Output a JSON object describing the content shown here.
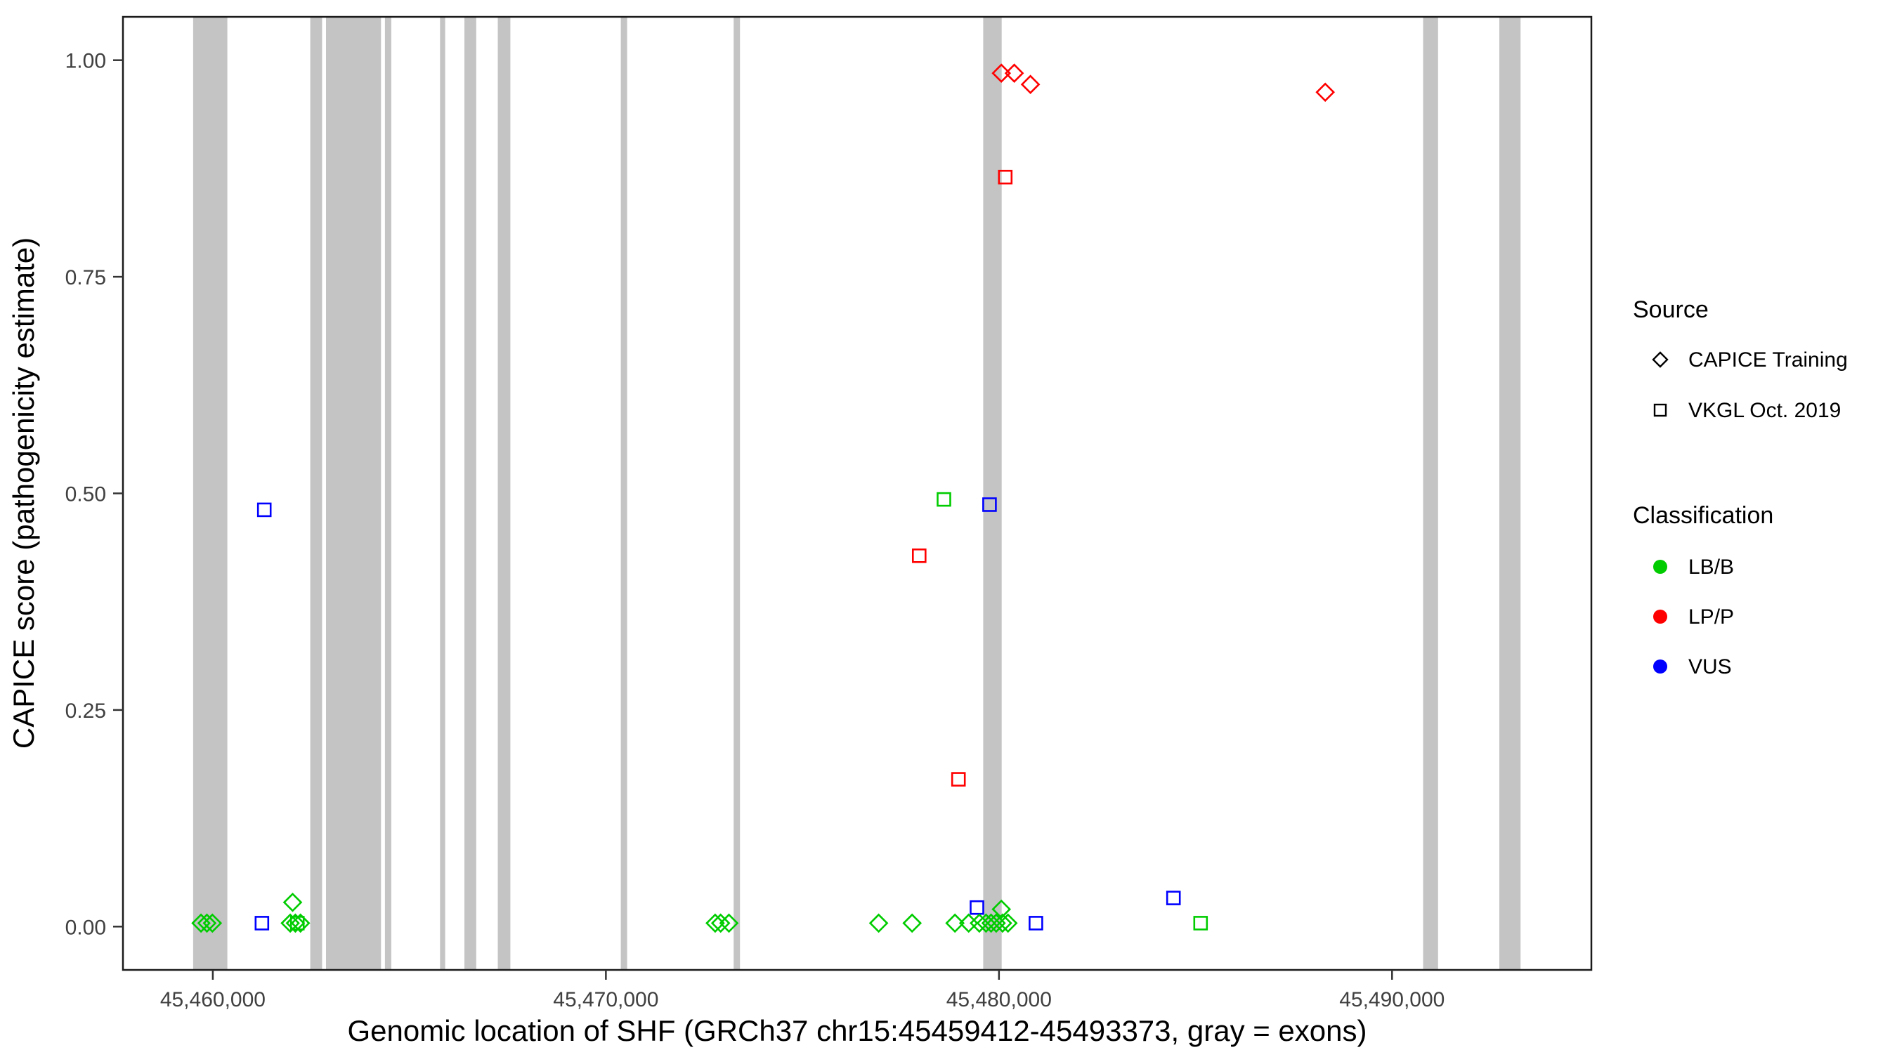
{
  "chart_data": {
    "type": "scatter",
    "title": "",
    "xlabel": "Genomic location of SHF (GRCh37 chr15:45459412-45493373, gray = exons)",
    "ylabel": "CAPICE score (pathogenicity estimate)",
    "x_domain": [
      45457714,
      45495071
    ],
    "y_domain": [
      -0.05,
      1.05
    ],
    "x_ticks": [
      {
        "value": 45460000,
        "label": "45,460,000"
      },
      {
        "value": 45470000,
        "label": "45,470,000"
      },
      {
        "value": 45480000,
        "label": "45,480,000"
      },
      {
        "value": 45490000,
        "label": "45,490,000"
      }
    ],
    "y_ticks": [
      {
        "value": 0.0,
        "label": "0.00"
      },
      {
        "value": 0.25,
        "label": "0.25"
      },
      {
        "value": 0.5,
        "label": "0.50"
      },
      {
        "value": 0.75,
        "label": "0.75"
      },
      {
        "value": 1.0,
        "label": "1.00"
      }
    ],
    "exon_color": "#C4C4C4",
    "exons": [
      [
        45459500,
        45460370
      ],
      [
        45462480,
        45462780
      ],
      [
        45462880,
        45464280
      ],
      [
        45464380,
        45464540
      ],
      [
        45465780,
        45465910
      ],
      [
        45466400,
        45466700
      ],
      [
        45467250,
        45467570
      ],
      [
        45470380,
        45470540
      ],
      [
        45473250,
        45473410
      ],
      [
        45479600,
        45480070
      ],
      [
        45490790,
        45491170
      ],
      [
        45492730,
        45493270
      ]
    ],
    "colors": {
      "LB/B": "#00CC00",
      "LP/P": "#FF0000",
      "VUS": "#0000FF"
    },
    "shapes": {
      "CAPICE Training": "diamond",
      "VKGL Oct. 2019": "square"
    },
    "points": [
      {
        "x": 45480060,
        "y": 0.985,
        "source": "CAPICE Training",
        "classification": "LP/P"
      },
      {
        "x": 45480390,
        "y": 0.985,
        "source": "CAPICE Training",
        "classification": "LP/P"
      },
      {
        "x": 45480800,
        "y": 0.972,
        "source": "CAPICE Training",
        "classification": "LP/P"
      },
      {
        "x": 45488300,
        "y": 0.963,
        "source": "CAPICE Training",
        "classification": "LP/P"
      },
      {
        "x": 45480160,
        "y": 0.865,
        "source": "VKGL Oct. 2019",
        "classification": "LP/P"
      },
      {
        "x": 45477970,
        "y": 0.428,
        "source": "VKGL Oct. 2019",
        "classification": "LP/P"
      },
      {
        "x": 45478970,
        "y": 0.17,
        "source": "VKGL Oct. 2019",
        "classification": "LP/P"
      },
      {
        "x": 45478600,
        "y": 0.493,
        "source": "VKGL Oct. 2019",
        "classification": "LB/B"
      },
      {
        "x": 45479760,
        "y": 0.487,
        "source": "VKGL Oct. 2019",
        "classification": "VUS"
      },
      {
        "x": 45461310,
        "y": 0.481,
        "source": "VKGL Oct. 2019",
        "classification": "VUS"
      },
      {
        "x": 45461250,
        "y": 0.004,
        "source": "VKGL Oct. 2019",
        "classification": "VUS"
      },
      {
        "x": 45479440,
        "y": 0.022,
        "source": "VKGL Oct. 2019",
        "classification": "VUS"
      },
      {
        "x": 45480940,
        "y": 0.004,
        "source": "VKGL Oct. 2019",
        "classification": "VUS"
      },
      {
        "x": 45484440,
        "y": 0.033,
        "source": "VKGL Oct. 2019",
        "classification": "VUS"
      },
      {
        "x": 45485130,
        "y": 0.004,
        "source": "VKGL Oct. 2019",
        "classification": "LB/B"
      },
      {
        "x": 45462150,
        "y": 0.004,
        "source": "VKGL Oct. 2019",
        "classification": "LB/B"
      },
      {
        "x": 45459700,
        "y": 0.004,
        "source": "CAPICE Training",
        "classification": "LB/B"
      },
      {
        "x": 45459850,
        "y": 0.004,
        "source": "CAPICE Training",
        "classification": "LB/B"
      },
      {
        "x": 45459990,
        "y": 0.004,
        "source": "CAPICE Training",
        "classification": "LB/B"
      },
      {
        "x": 45462030,
        "y": 0.028,
        "source": "CAPICE Training",
        "classification": "LB/B"
      },
      {
        "x": 45461970,
        "y": 0.004,
        "source": "CAPICE Training",
        "classification": "LB/B"
      },
      {
        "x": 45462100,
        "y": 0.004,
        "source": "CAPICE Training",
        "classification": "LB/B"
      },
      {
        "x": 45462230,
        "y": 0.004,
        "source": "CAPICE Training",
        "classification": "LB/B"
      },
      {
        "x": 45472780,
        "y": 0.004,
        "source": "CAPICE Training",
        "classification": "LB/B"
      },
      {
        "x": 45472920,
        "y": 0.004,
        "source": "CAPICE Training",
        "classification": "LB/B"
      },
      {
        "x": 45473130,
        "y": 0.004,
        "source": "CAPICE Training",
        "classification": "LB/B"
      },
      {
        "x": 45476940,
        "y": 0.004,
        "source": "CAPICE Training",
        "classification": "LB/B"
      },
      {
        "x": 45477790,
        "y": 0.004,
        "source": "CAPICE Training",
        "classification": "LB/B"
      },
      {
        "x": 45478880,
        "y": 0.004,
        "source": "CAPICE Training",
        "classification": "LB/B"
      },
      {
        "x": 45479230,
        "y": 0.004,
        "source": "CAPICE Training",
        "classification": "LB/B"
      },
      {
        "x": 45479500,
        "y": 0.004,
        "source": "CAPICE Training",
        "classification": "LB/B"
      },
      {
        "x": 45479670,
        "y": 0.004,
        "source": "CAPICE Training",
        "classification": "LB/B"
      },
      {
        "x": 45479800,
        "y": 0.004,
        "source": "CAPICE Training",
        "classification": "LB/B"
      },
      {
        "x": 45479930,
        "y": 0.004,
        "source": "CAPICE Training",
        "classification": "LB/B"
      },
      {
        "x": 45480060,
        "y": 0.02,
        "source": "CAPICE Training",
        "classification": "LB/B"
      },
      {
        "x": 45480090,
        "y": 0.004,
        "source": "CAPICE Training",
        "classification": "LB/B"
      },
      {
        "x": 45480230,
        "y": 0.004,
        "source": "CAPICE Training",
        "classification": "LB/B"
      }
    ],
    "legend": {
      "source_title": "Source",
      "source_items": [
        {
          "label": "CAPICE Training",
          "shape": "diamond"
        },
        {
          "label": "VKGL Oct. 2019",
          "shape": "square"
        }
      ],
      "classification_title": "Classification",
      "classification_items": [
        {
          "label": "LB/B",
          "color": "#00CC00"
        },
        {
          "label": "LP/P",
          "color": "#FF0000"
        },
        {
          "label": "VUS",
          "color": "#0000FF"
        }
      ]
    }
  }
}
